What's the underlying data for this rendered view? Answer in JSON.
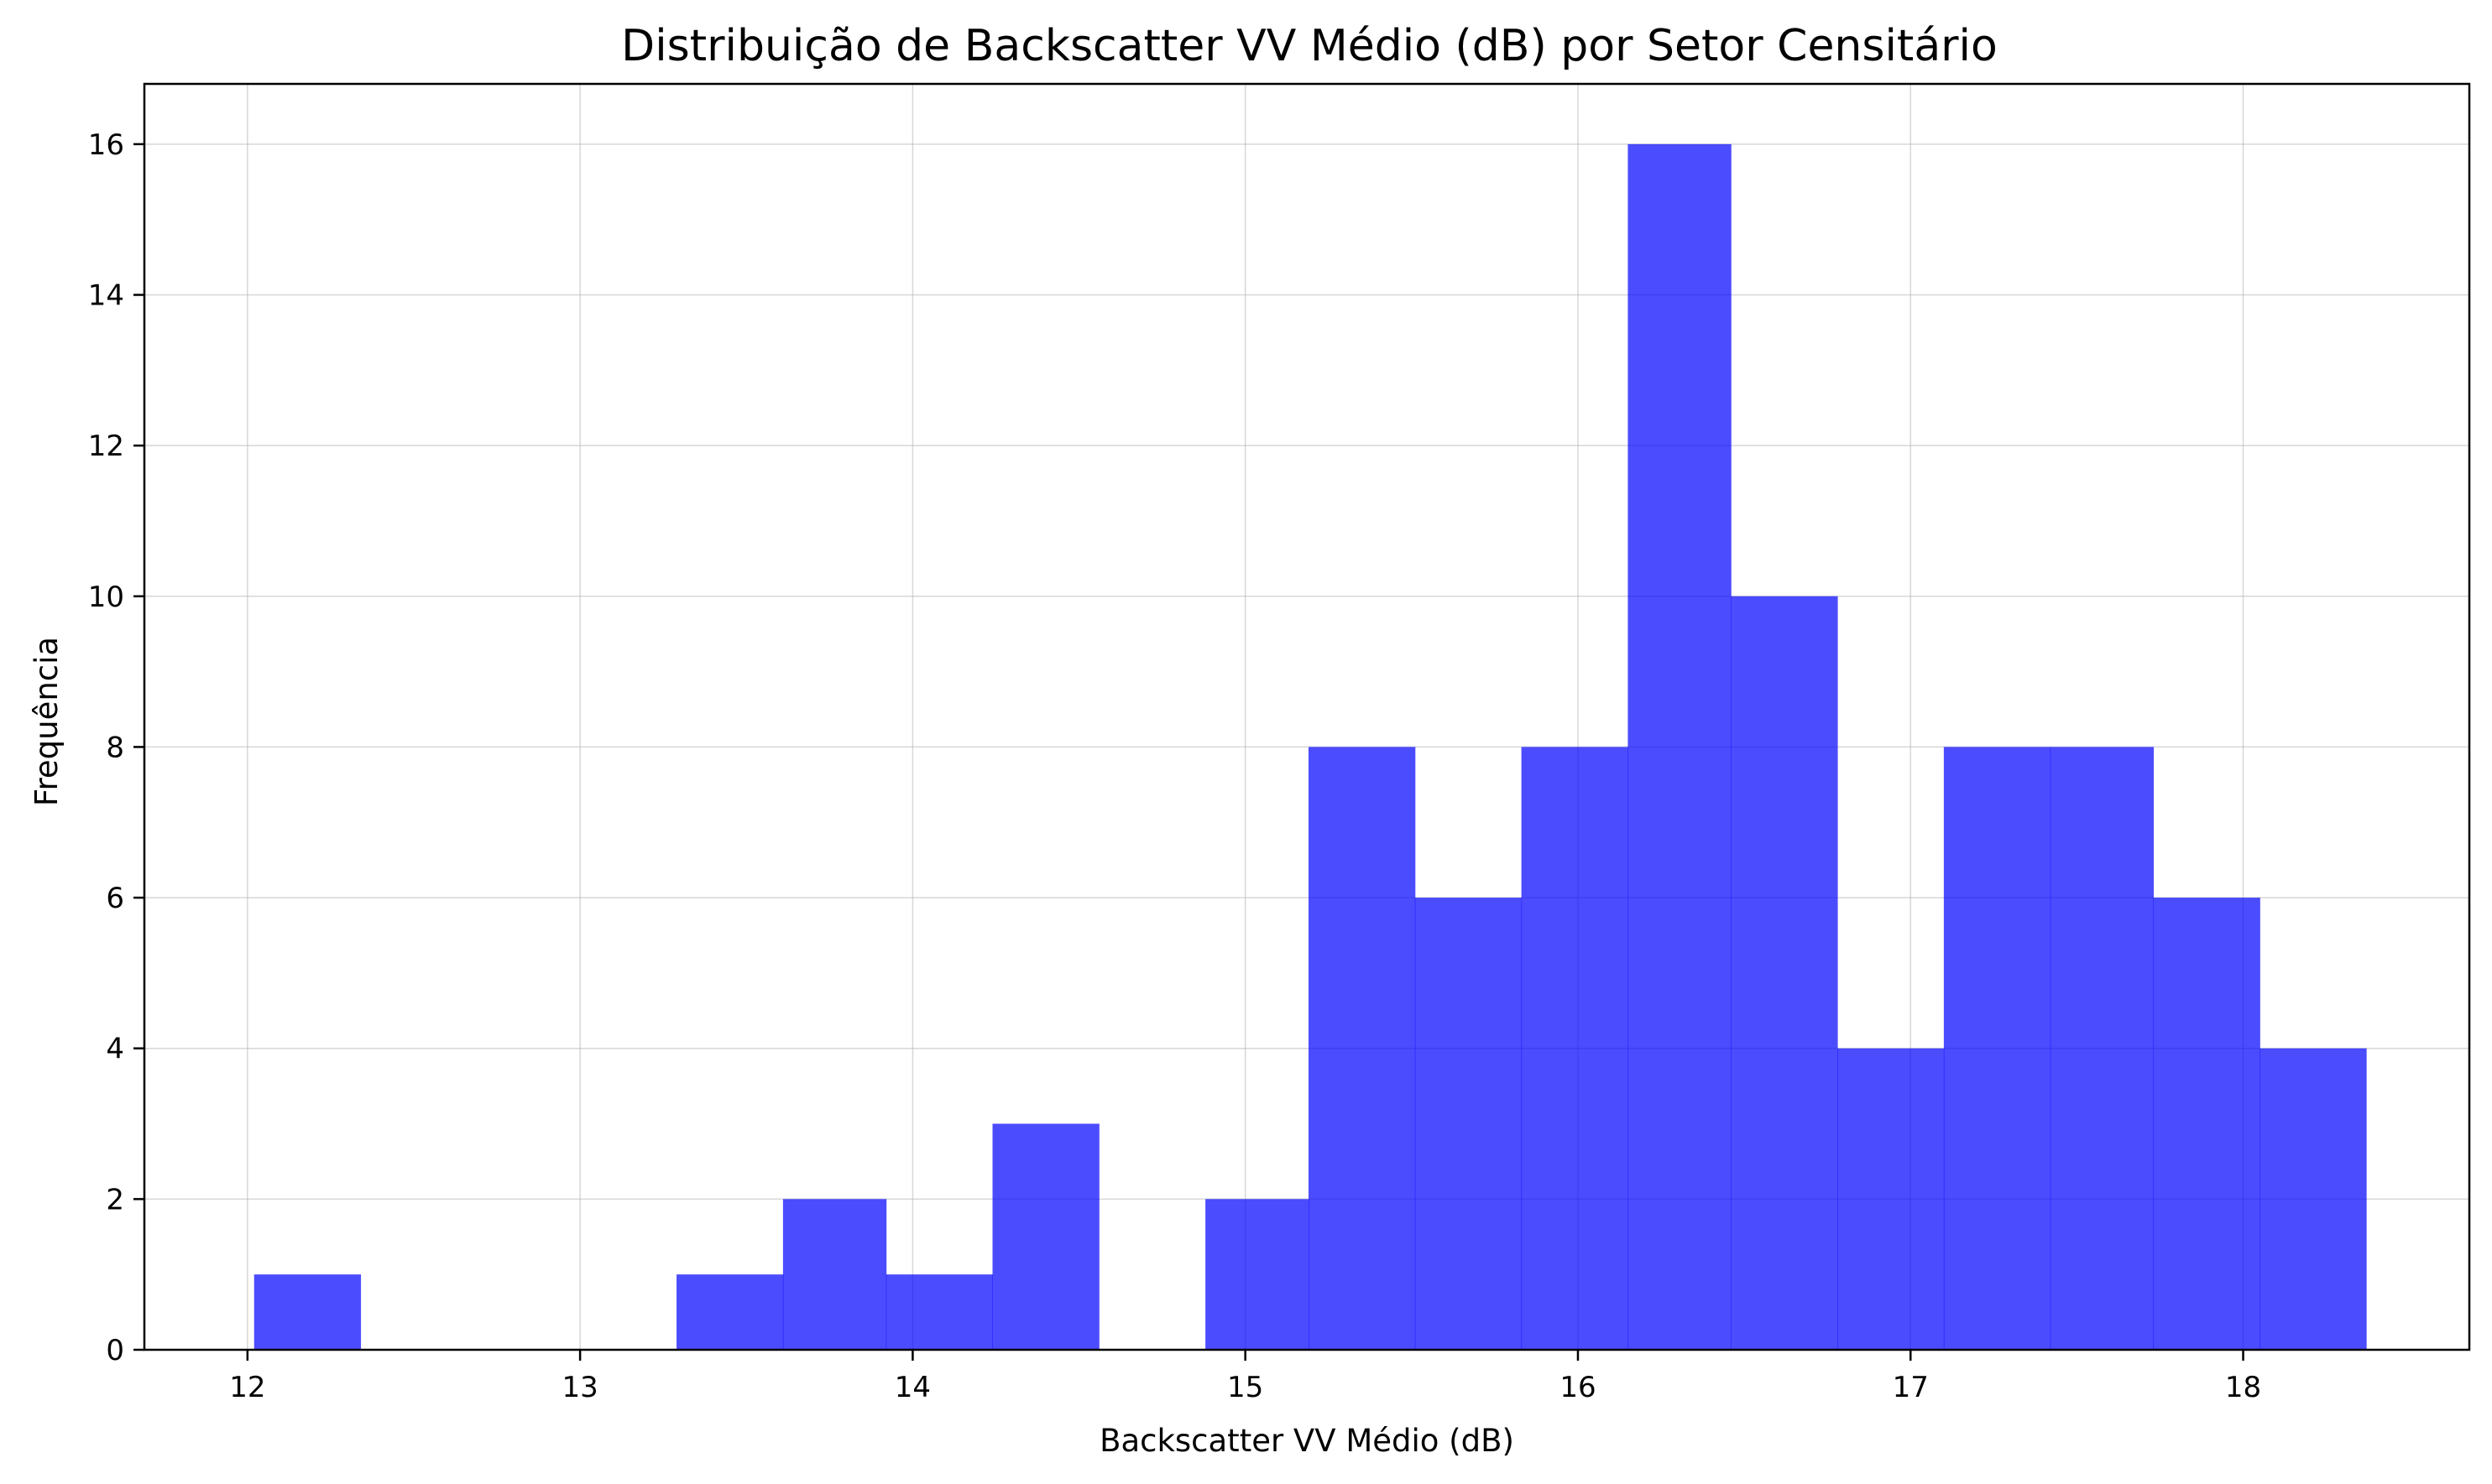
{
  "chart_data": {
    "type": "bar",
    "title": "Distribuição de Backscatter VV Médio (dB) por Setor Censitário",
    "xlabel": "Backscatter VV Médio (dB)",
    "ylabel": "Frequência",
    "xlim": [
      11.69,
      18.68
    ],
    "ylim": [
      0,
      16.8
    ],
    "xticks": [
      12,
      13,
      14,
      15,
      16,
      17,
      18
    ],
    "yticks": [
      0,
      2,
      4,
      6,
      8,
      10,
      12,
      14,
      16
    ],
    "grid": true,
    "bar_color": "#0000ff",
    "bar_opacity": 0.7,
    "bins": [
      {
        "x0": 12.02,
        "x1": 12.34,
        "count": 1
      },
      {
        "x0": 12.34,
        "x1": 12.66,
        "count": 0
      },
      {
        "x0": 12.66,
        "x1": 12.97,
        "count": 0
      },
      {
        "x0": 12.97,
        "x1": 13.29,
        "count": 0
      },
      {
        "x0": 13.29,
        "x1": 13.61,
        "count": 1
      },
      {
        "x0": 13.61,
        "x1": 13.92,
        "count": 2
      },
      {
        "x0": 13.92,
        "x1": 14.24,
        "count": 1
      },
      {
        "x0": 14.24,
        "x1": 14.56,
        "count": 3
      },
      {
        "x0": 14.56,
        "x1": 14.88,
        "count": 0
      },
      {
        "x0": 14.88,
        "x1": 15.19,
        "count": 2
      },
      {
        "x0": 15.19,
        "x1": 15.51,
        "count": 8
      },
      {
        "x0": 15.51,
        "x1": 15.83,
        "count": 6
      },
      {
        "x0": 15.83,
        "x1": 16.15,
        "count": 8
      },
      {
        "x0": 16.15,
        "x1": 16.46,
        "count": 16
      },
      {
        "x0": 16.46,
        "x1": 16.78,
        "count": 10
      },
      {
        "x0": 16.78,
        "x1": 17.1,
        "count": 4
      },
      {
        "x0": 17.1,
        "x1": 17.42,
        "count": 8
      },
      {
        "x0": 17.42,
        "x1": 17.73,
        "count": 8
      },
      {
        "x0": 17.73,
        "x1": 18.05,
        "count": 6
      },
      {
        "x0": 18.05,
        "x1": 18.37,
        "count": 4
      }
    ]
  }
}
